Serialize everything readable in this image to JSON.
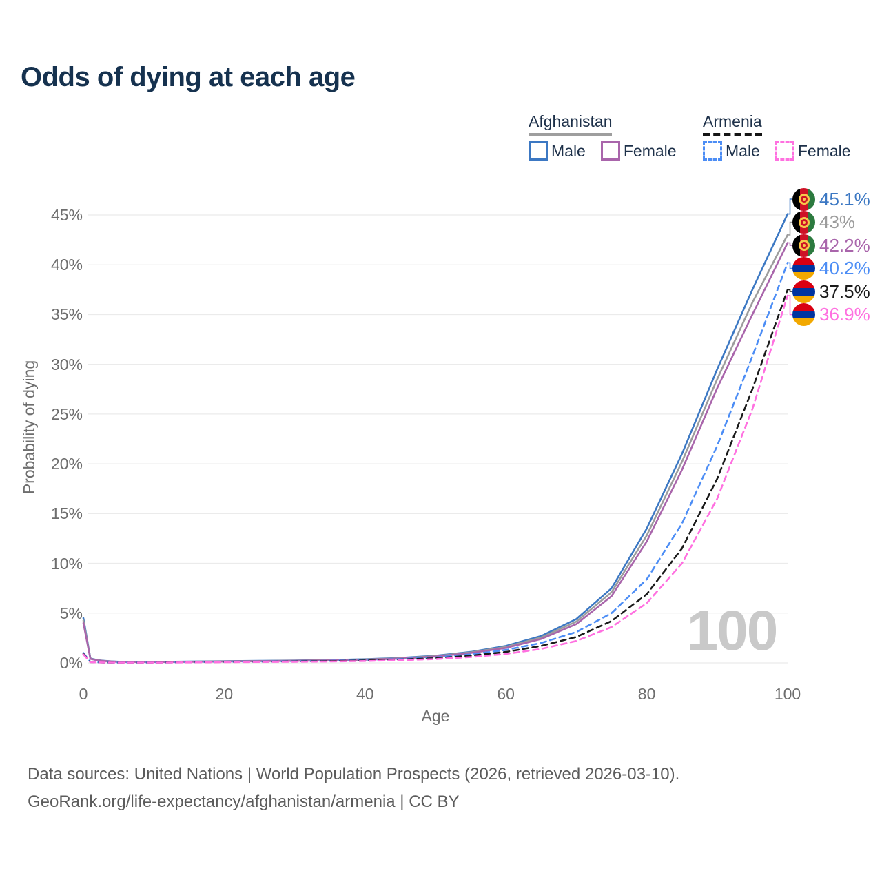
{
  "title": "Odds of dying at each age",
  "watermark": "100",
  "legend": {
    "groups": [
      {
        "id": "afghanistan",
        "label": "Afghanistan",
        "line_style": "solid",
        "line_color": "#9e9e9e",
        "items": [
          {
            "label": "Male",
            "color": "#3c78c3",
            "style": "solid"
          },
          {
            "label": "Female",
            "color": "#a965ab",
            "style": "solid"
          }
        ]
      },
      {
        "id": "armenia",
        "label": "Armenia",
        "line_style": "dashed",
        "line_color": "#151515",
        "items": [
          {
            "label": "Male",
            "color": "#4c8df5",
            "style": "dashed"
          },
          {
            "label": "Female",
            "color": "#ff70e0",
            "style": "dashed"
          }
        ]
      }
    ]
  },
  "footer": {
    "line1": "Data sources: United Nations | World Population Prospects (2026, retrieved 2026-03-10).",
    "line2": "GeoRank.org/life-expectancy/afghanistan/armenia | CC BY"
  },
  "chart_data": {
    "type": "line",
    "title": "Odds of dying at each age",
    "xlabel": "Age",
    "ylabel": "Probability of dying",
    "xlim": [
      0,
      100
    ],
    "ylim_pct": [
      0,
      47
    ],
    "grid": true,
    "legend_position": "top-right",
    "x_ticks": [
      "0",
      "20",
      "40",
      "60",
      "80",
      "100"
    ],
    "x_tick_values": [
      0,
      20,
      40,
      60,
      80,
      100
    ],
    "y_ticks": [
      "0%",
      "5%",
      "10%",
      "15%",
      "20%",
      "25%",
      "30%",
      "35%",
      "40%",
      "45%"
    ],
    "y_tick_values": [
      0,
      5,
      10,
      15,
      20,
      25,
      30,
      35,
      40,
      45
    ],
    "ages": [
      0,
      1,
      2,
      3,
      4,
      5,
      10,
      15,
      20,
      25,
      30,
      35,
      40,
      45,
      50,
      55,
      60,
      65,
      70,
      75,
      80,
      85,
      90,
      95,
      100
    ],
    "series": [
      {
        "id": "afghanistan-male",
        "name": "Afghanistan — Male",
        "color": "#3c78c3",
        "dash": "solid",
        "flag": "afghanistan",
        "end_label": "45.1%",
        "values_pct": [
          4.5,
          0.45,
          0.28,
          0.2,
          0.15,
          0.12,
          0.1,
          0.13,
          0.17,
          0.2,
          0.24,
          0.29,
          0.37,
          0.5,
          0.72,
          1.1,
          1.7,
          2.7,
          4.4,
          7.5,
          13.5,
          21.0,
          29.5,
          37.5,
          45.1
        ]
      },
      {
        "id": "afghanistan-total",
        "name": "Afghanistan",
        "color": "#9c9c9c",
        "dash": "solid",
        "flag": "afghanistan",
        "end_label": "43%",
        "values_pct": [
          4.25,
          0.42,
          0.26,
          0.19,
          0.14,
          0.11,
          0.095,
          0.12,
          0.155,
          0.185,
          0.22,
          0.27,
          0.345,
          0.465,
          0.68,
          1.05,
          1.6,
          2.55,
          4.15,
          7.1,
          12.8,
          20.2,
          28.5,
          36.2,
          43.0
        ]
      },
      {
        "id": "afghanistan-female",
        "name": "Afghanistan — Female",
        "color": "#a965ab",
        "dash": "solid",
        "flag": "afghanistan",
        "end_label": "42.2%",
        "values_pct": [
          4.0,
          0.4,
          0.25,
          0.18,
          0.13,
          0.11,
          0.09,
          0.11,
          0.14,
          0.17,
          0.2,
          0.25,
          0.32,
          0.43,
          0.64,
          1.0,
          1.5,
          2.4,
          3.9,
          6.7,
          12.2,
          19.4,
          27.6,
          35.0,
          42.2
        ]
      },
      {
        "id": "armenia-male",
        "name": "Armenia — Male",
        "color": "#4c8df5",
        "dash": "dashed",
        "flag": "armenia",
        "end_label": "40.2%",
        "values_pct": [
          1.0,
          0.09,
          0.06,
          0.05,
          0.045,
          0.04,
          0.04,
          0.07,
          0.11,
          0.13,
          0.16,
          0.21,
          0.28,
          0.38,
          0.55,
          0.85,
          1.3,
          2.0,
          3.1,
          5.0,
          8.4,
          14.0,
          21.8,
          30.8,
          40.2
        ]
      },
      {
        "id": "armenia-total",
        "name": "Armenia",
        "color": "#1a1a1a",
        "dash": "dashed",
        "flag": "armenia",
        "end_label": "37.5%",
        "values_pct": [
          0.9,
          0.08,
          0.055,
          0.045,
          0.04,
          0.035,
          0.035,
          0.06,
          0.09,
          0.11,
          0.14,
          0.18,
          0.24,
          0.33,
          0.47,
          0.72,
          1.1,
          1.7,
          2.6,
          4.2,
          6.9,
          11.5,
          18.5,
          27.5,
          37.5
        ]
      },
      {
        "id": "armenia-female",
        "name": "Armenia — Female",
        "color": "#ff70e0",
        "dash": "dashed",
        "flag": "armenia",
        "end_label": "36.9%",
        "values_pct": [
          0.85,
          0.07,
          0.05,
          0.04,
          0.035,
          0.03,
          0.03,
          0.05,
          0.07,
          0.09,
          0.11,
          0.14,
          0.19,
          0.26,
          0.38,
          0.58,
          0.9,
          1.4,
          2.2,
          3.6,
          6.0,
          10.0,
          16.5,
          25.5,
          36.9
        ]
      }
    ]
  }
}
